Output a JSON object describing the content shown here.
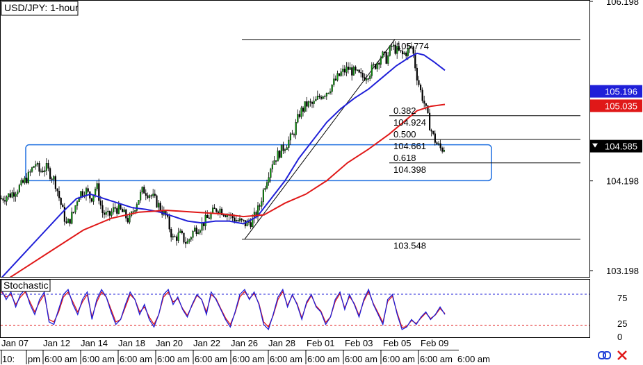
{
  "chart_data": [
    {
      "type": "candlestick",
      "title": "USD/JPY: 1-hour",
      "x_labels": [
        "Jan 07",
        "Jan 12",
        "Jan 14",
        "Jan 18",
        "Jan 20",
        "Jan 22",
        "Jan 26",
        "Jan 28",
        "Feb 01",
        "Feb 03",
        "Feb 05",
        "Feb 09"
      ],
      "y_ticks": [
        "106.198",
        "104.198",
        "103.198"
      ],
      "ylim": [
        103.05,
        106.2
      ],
      "close_path": [
        [
          0,
          104.0
        ],
        [
          15,
          104.05
        ],
        [
          30,
          104.15
        ],
        [
          40,
          104.25
        ],
        [
          50,
          104.4
        ],
        [
          55,
          104.3
        ],
        [
          65,
          104.35
        ],
        [
          78,
          104.2
        ],
        [
          88,
          103.9
        ],
        [
          95,
          103.7
        ],
        [
          105,
          103.85
        ],
        [
          112,
          104.05
        ],
        [
          122,
          104.1
        ],
        [
          130,
          104.0
        ],
        [
          138,
          104.15
        ],
        [
          146,
          103.85
        ],
        [
          155,
          103.8
        ],
        [
          165,
          103.9
        ],
        [
          175,
          103.85
        ],
        [
          185,
          103.75
        ],
        [
          195,
          103.95
        ],
        [
          205,
          104.1
        ],
        [
          215,
          104.05
        ],
        [
          225,
          103.95
        ],
        [
          238,
          103.8
        ],
        [
          248,
          103.55
        ],
        [
          258,
          103.6
        ],
        [
          268,
          103.5
        ],
        [
          278,
          103.65
        ],
        [
          288,
          103.7
        ],
        [
          300,
          103.8
        ],
        [
          312,
          103.9
        ],
        [
          322,
          103.85
        ],
        [
          332,
          103.8
        ],
        [
          342,
          103.75
        ],
        [
          352,
          103.72
        ],
        [
          362,
          103.75
        ],
        [
          372,
          103.9
        ],
        [
          380,
          104.15
        ],
        [
          390,
          104.4
        ],
        [
          400,
          104.5
        ],
        [
          410,
          104.6
        ],
        [
          420,
          104.7
        ],
        [
          430,
          104.95
        ],
        [
          440,
          105.05
        ],
        [
          450,
          105.05
        ],
        [
          460,
          105.15
        ],
        [
          470,
          105.2
        ],
        [
          480,
          105.3
        ],
        [
          490,
          105.4
        ],
        [
          500,
          105.45
        ],
        [
          510,
          105.4
        ],
        [
          520,
          105.35
        ],
        [
          530,
          105.4
        ],
        [
          540,
          105.5
        ],
        [
          548,
          105.6
        ],
        [
          556,
          105.55
        ],
        [
          562,
          105.7
        ],
        [
          570,
          105.65
        ],
        [
          578,
          105.6
        ],
        [
          586,
          105.65
        ],
        [
          592,
          105.7
        ],
        [
          598,
          105.4
        ],
        [
          604,
          105.2
        ],
        [
          610,
          105.05
        ],
        [
          616,
          104.85
        ],
        [
          622,
          104.7
        ],
        [
          628,
          104.6
        ],
        [
          634,
          104.55
        ],
        [
          640,
          104.58
        ]
      ],
      "series": [
        {
          "name": "",
          "color": "#1f1fd8",
          "values": [
            [
              0,
              103.1
            ],
            [
              30,
              103.35
            ],
            [
              60,
              103.6
            ],
            [
              90,
              103.85
            ],
            [
              110,
              104.0
            ],
            [
              130,
              104.05
            ],
            [
              150,
              104.0
            ],
            [
              170,
              103.95
            ],
            [
              190,
              103.9
            ],
            [
              210,
              103.88
            ],
            [
              230,
              103.85
            ],
            [
              250,
              103.8
            ],
            [
              270,
              103.75
            ],
            [
              290,
              103.73
            ],
            [
              310,
              103.75
            ],
            [
              330,
              103.75
            ],
            [
              350,
              103.72
            ],
            [
              370,
              103.8
            ],
            [
              390,
              104.0
            ],
            [
              410,
              104.2
            ],
            [
              430,
              104.45
            ],
            [
              450,
              104.65
            ],
            [
              470,
              104.85
            ],
            [
              490,
              105.0
            ],
            [
              510,
              105.12
            ],
            [
              530,
              105.22
            ],
            [
              550,
              105.35
            ],
            [
              570,
              105.48
            ],
            [
              590,
              105.58
            ],
            [
              600,
              105.62
            ],
            [
              610,
              105.6
            ],
            [
              625,
              105.52
            ],
            [
              640,
              105.43
            ]
          ]
        },
        {
          "name": "",
          "color": "#e01818",
          "values": [
            [
              0,
              103.05
            ],
            [
              40,
              103.25
            ],
            [
              80,
              103.45
            ],
            [
              120,
              103.65
            ],
            [
              160,
              103.78
            ],
            [
              200,
              103.85
            ],
            [
              240,
              103.87
            ],
            [
              280,
              103.85
            ],
            [
              320,
              103.83
            ],
            [
              350,
              103.8
            ],
            [
              380,
              103.82
            ],
            [
              410,
              103.95
            ],
            [
              440,
              104.05
            ],
            [
              470,
              104.2
            ],
            [
              500,
              104.4
            ],
            [
              530,
              104.55
            ],
            [
              560,
              104.72
            ],
            [
              580,
              104.85
            ],
            [
              600,
              104.98
            ],
            [
              620,
              105.03
            ],
            [
              640,
              105.05
            ]
          ]
        }
      ],
      "price_tags": [
        {
          "value": "105.196",
          "price": 105.196,
          "bg": "#1f1fd8",
          "fg": "#ffffff"
        },
        {
          "value": "105.035",
          "price": 105.035,
          "bg": "#e01818",
          "fg": "#ffffff"
        },
        {
          "value": "104.585",
          "price": 104.585,
          "bg": "#000000",
          "fg": "#ffffff"
        }
      ],
      "fib_levels": [
        {
          "ratio": "",
          "value": "105.774",
          "price": 105.774
        },
        {
          "ratio": "0.382",
          "value": "104.924",
          "price": 104.924
        },
        {
          "ratio": "0.500",
          "value": "104.661",
          "price": 104.661
        },
        {
          "ratio": "0.618",
          "value": "104.398",
          "price": 104.398
        },
        {
          "ratio": "",
          "value": "103.548",
          "price": 103.548
        }
      ],
      "zone": {
        "price_top": 104.6,
        "price_bottom": 104.2,
        "color": "#1e6fe0"
      },
      "grid": false
    },
    {
      "type": "line",
      "title": "Stochastic",
      "y_ticks": [
        "75",
        "25",
        "0"
      ],
      "ylim": [
        0,
        100
      ],
      "levels": [
        80,
        20
      ],
      "series": [
        {
          "name": "",
          "color": "#1f1fd8",
          "values": [
            90,
            70,
            85,
            55,
            80,
            90,
            60,
            40,
            70,
            85,
            25,
            20,
            50,
            80,
            90,
            60,
            40,
            70,
            85,
            30,
            70,
            90,
            75,
            45,
            20,
            30,
            60,
            85,
            70,
            40,
            60,
            30,
            15,
            40,
            80,
            90,
            60,
            75,
            50,
            35,
            60,
            80,
            70,
            40,
            85,
            70,
            50,
            30,
            15,
            45,
            80,
            90,
            70,
            85,
            60,
            20,
            10,
            40,
            75,
            90,
            55,
            80,
            60,
            30,
            65,
            80,
            55,
            45,
            20,
            35,
            70,
            85,
            50,
            80,
            60,
            35,
            70,
            90,
            60,
            40,
            20,
            70,
            80,
            40,
            10,
            15,
            30,
            20,
            35,
            45,
            30,
            40,
            55,
            40
          ]
        },
        {
          "name": "",
          "color": "#e01818",
          "values": [
            85,
            75,
            80,
            60,
            75,
            85,
            65,
            45,
            65,
            80,
            30,
            25,
            45,
            75,
            85,
            65,
            45,
            65,
            80,
            35,
            65,
            85,
            75,
            50,
            25,
            30,
            55,
            80,
            70,
            45,
            55,
            35,
            20,
            40,
            75,
            85,
            65,
            72,
            52,
            38,
            58,
            78,
            70,
            45,
            80,
            72,
            52,
            33,
            20,
            43,
            75,
            86,
            72,
            82,
            62,
            25,
            15,
            38,
            70,
            86,
            58,
            78,
            62,
            33,
            62,
            78,
            57,
            47,
            24,
            35,
            66,
            82,
            53,
            76,
            62,
            38,
            67,
            86,
            62,
            43,
            24,
            66,
            77,
            43,
            14,
            16,
            28,
            22,
            33,
            43,
            32,
            39,
            52,
            42
          ]
        }
      ],
      "grid": false
    }
  ],
  "bottom_axis": [
    "10:",
    "pm",
    "6:00 am",
    "6:00 am",
    "6:00 am",
    "6:00 am",
    "6:00 am",
    "6:00 am",
    "6:00 am",
    "6:00 am",
    "6:00 am",
    "6:00 am",
    "6:00 am",
    "6:00 am"
  ],
  "icons": [
    "link-icon",
    "close-icon"
  ]
}
